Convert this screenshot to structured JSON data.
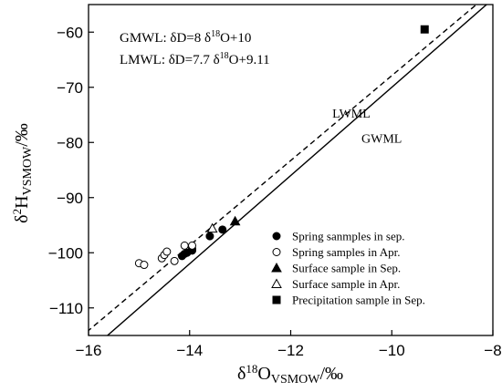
{
  "chart_data": {
    "type": "scatter",
    "title": "",
    "xlabel": {
      "prefix": "δ",
      "sup": "18",
      "main": "O",
      "sub": "VSMOW",
      "suffix": "/‰"
    },
    "ylabel": {
      "prefix": "δ",
      "sup": "2",
      "main": "H",
      "sub": "VSMOW",
      "suffix": "/‰"
    },
    "xlim": [
      -16,
      -8
    ],
    "ylim": [
      -115,
      -55
    ],
    "xticks": [
      -16,
      -14,
      -12,
      -10,
      -8
    ],
    "yticks": [
      -110,
      -100,
      -90,
      -80,
      -70,
      -60
    ],
    "grid": false,
    "legend_position": "lower-right",
    "equations": [
      {
        "prefix": "GMWL:  δD=8 δ",
        "sup": "18",
        "suffix": "O+10"
      },
      {
        "prefix": "LMWL:  δD=7.7 δ",
        "sup": "18",
        "suffix": "O+9.11"
      }
    ],
    "lines": [
      {
        "name": "LWML",
        "slope": 7.7,
        "intercept": 9.11,
        "style": "dashed",
        "label_at": [
          -10.8,
          -75.5
        ]
      },
      {
        "name": "GWML",
        "slope": 8,
        "intercept": 10,
        "style": "solid",
        "label_at": [
          -10.2,
          -80
        ]
      }
    ],
    "series": [
      {
        "name": "Spring sanmples in sep.",
        "marker": "filled-circle",
        "points": [
          [
            -14.15,
            -100.6
          ],
          [
            -14.1,
            -100.2
          ],
          [
            -14.05,
            -100.0
          ],
          [
            -13.95,
            -99.3
          ],
          [
            -13.95,
            -99.6
          ],
          [
            -13.6,
            -97.0
          ],
          [
            -13.35,
            -95.8
          ]
        ]
      },
      {
        "name": "Spring samples in Apr.",
        "marker": "open-circle",
        "points": [
          [
            -15.0,
            -101.9
          ],
          [
            -14.9,
            -102.2
          ],
          [
            -14.55,
            -101.0
          ],
          [
            -14.5,
            -100.4
          ],
          [
            -14.45,
            -99.8
          ],
          [
            -14.3,
            -101.5
          ],
          [
            -14.1,
            -98.7
          ],
          [
            -13.95,
            -98.7
          ]
        ]
      },
      {
        "name": "Surface sample in Sep.",
        "marker": "filled-triangle",
        "points": [
          [
            -13.1,
            -94.3
          ]
        ]
      },
      {
        "name": "Surface sample in Apr.",
        "marker": "open-triangle",
        "points": [
          [
            -13.55,
            -95.6
          ]
        ]
      },
      {
        "name": "Precipitation sample in Sep.",
        "marker": "filled-square",
        "points": [
          [
            -9.35,
            -59.5
          ]
        ]
      }
    ]
  }
}
